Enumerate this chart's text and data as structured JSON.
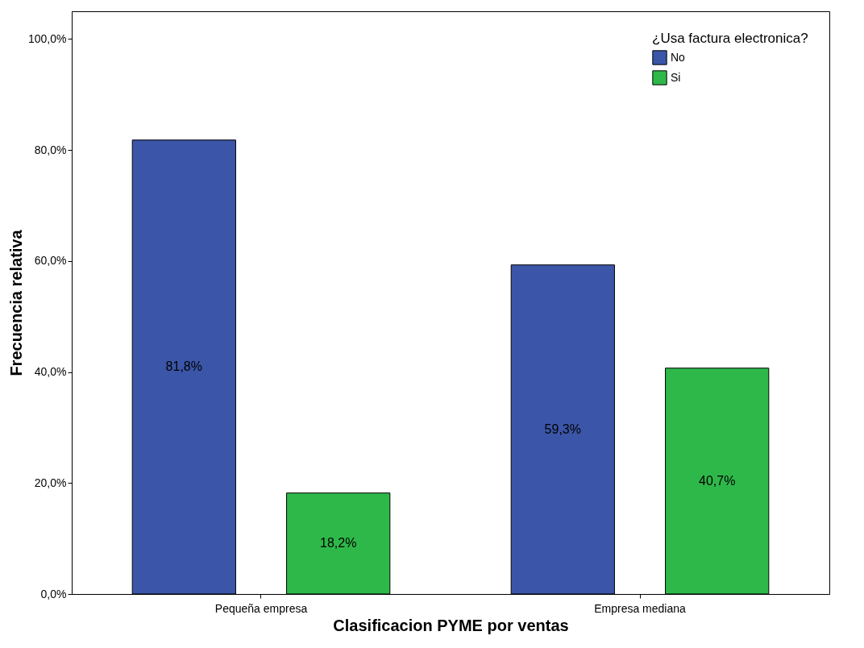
{
  "chart_data": {
    "type": "bar",
    "xlabel": "Clasificacion PYME por ventas",
    "ylabel": "Frecuencia relativa",
    "legend_title": "¿Usa factura electronica?",
    "legend": "top right",
    "grid": false,
    "categories": [
      "Pequeña empresa",
      "Empresa mediana"
    ],
    "series": [
      {
        "name": "No",
        "color": "#3b56a8",
        "values": [
          81.8,
          59.3
        ],
        "value_labels": [
          "81,8%",
          "59,3%"
        ]
      },
      {
        "name": "Si",
        "color": "#2fb84a",
        "values": [
          18.2,
          40.7
        ],
        "value_labels": [
          "18,2%",
          "40,7%"
        ]
      }
    ],
    "ylim": [
      0,
      105
    ],
    "yticks": [
      {
        "value": 0,
        "label": "0,0%"
      },
      {
        "value": 20,
        "label": "20,0%"
      },
      {
        "value": 40,
        "label": "40,0%"
      },
      {
        "value": 60,
        "label": "60,0%"
      },
      {
        "value": 80,
        "label": "80,0%"
      },
      {
        "value": 100,
        "label": "100,0%"
      }
    ]
  }
}
